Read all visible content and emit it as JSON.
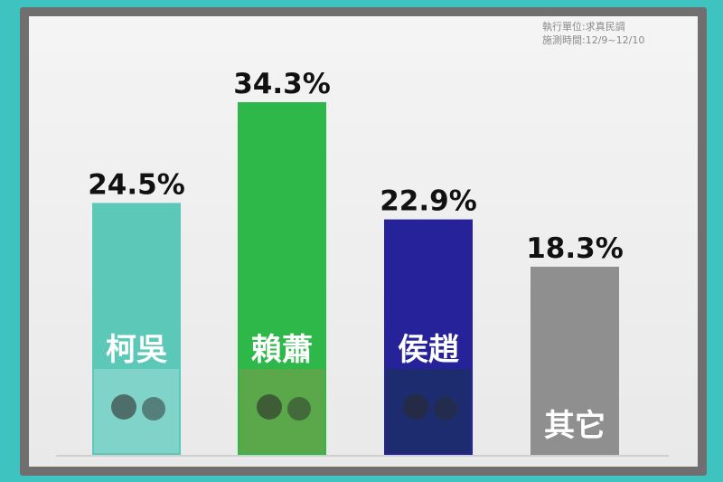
{
  "source": {
    "line1": "執行單位:求真民調",
    "line2": "施測時間:12/9~12/10"
  },
  "chart_data": {
    "type": "bar",
    "categories": [
      "柯吳",
      "賴蕭",
      "侯趙",
      "其它"
    ],
    "values": [
      24.5,
      34.3,
      22.9,
      18.3
    ],
    "value_labels": [
      "24.5%",
      "34.3%",
      "22.9%",
      "18.3%"
    ],
    "colors": [
      "#5cc8b8",
      "#2fb84a",
      "#26239a",
      "#8f8f8f"
    ],
    "ylim": [
      0,
      34.3
    ],
    "grid": false,
    "title": "",
    "xlabel": "",
    "ylabel": ""
  }
}
